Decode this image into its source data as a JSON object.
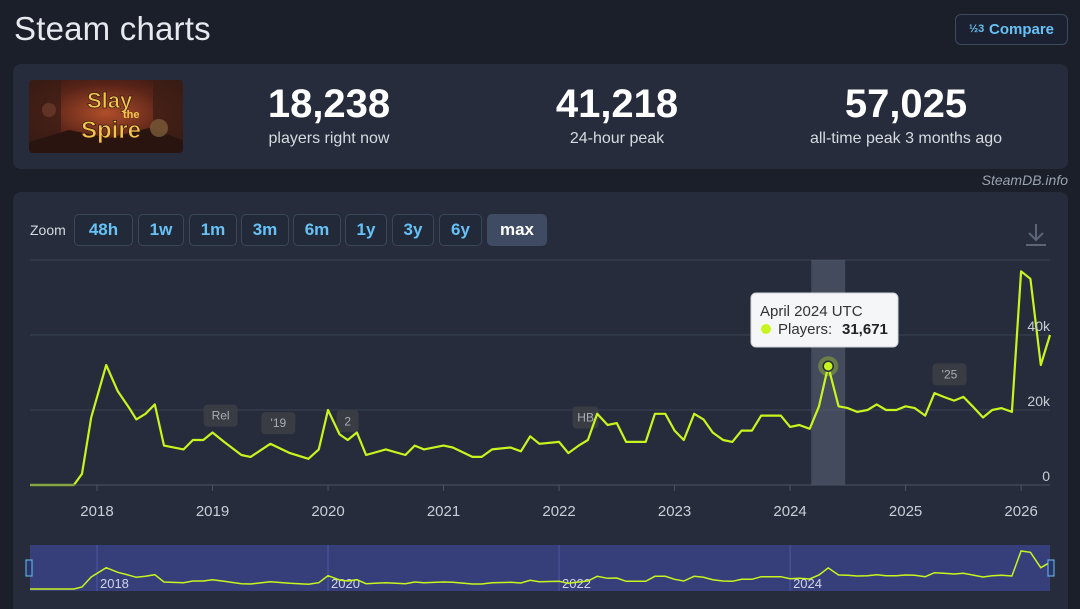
{
  "header": {
    "title": "Steam charts",
    "compare_label": "Compare",
    "compare_icon_text": "½3"
  },
  "game": {
    "logo_text_1": "Slay",
    "logo_text_2": "the",
    "logo_text_3": "Spire"
  },
  "stats": [
    {
      "value": "18,238",
      "label": "players right now"
    },
    {
      "value": "41,218",
      "label": "24-hour peak"
    },
    {
      "value": "57,025",
      "label": "all-time peak 3 months ago"
    }
  ],
  "watermark": "SteamDB.info",
  "zoom": {
    "label": "Zoom",
    "options": [
      "48h",
      "1w",
      "1m",
      "3m",
      "6m",
      "1y",
      "3y",
      "6y",
      "max"
    ],
    "active": "max"
  },
  "tooltip": {
    "title": "April 2024 UTC",
    "series_label": "Players:",
    "value": "31,671"
  },
  "colors": {
    "line": "#c8f51e",
    "background": "#1b1f2a",
    "panel": "#262c3b",
    "accent": "#67c1f5"
  },
  "chart_data": {
    "type": "line",
    "series": [
      {
        "values": [
          [
            2017.42,
            0
          ],
          [
            2017.8,
            0
          ],
          [
            2017.87,
            3000
          ],
          [
            2017.95,
            18000
          ],
          [
            2018.08,
            32000
          ],
          [
            2018.18,
            25000
          ],
          [
            2018.28,
            20500
          ],
          [
            2018.34,
            17500
          ],
          [
            2018.42,
            19000
          ],
          [
            2018.5,
            21500
          ],
          [
            2018.58,
            10500
          ],
          [
            2018.75,
            9500
          ],
          [
            2018.83,
            12000
          ],
          [
            2018.92,
            12000
          ],
          [
            2019.0,
            14000
          ],
          [
            2019.1,
            11500
          ],
          [
            2019.25,
            8000
          ],
          [
            2019.33,
            7500
          ],
          [
            2019.5,
            11000
          ],
          [
            2019.67,
            8500
          ],
          [
            2019.83,
            7000
          ],
          [
            2019.92,
            9500
          ],
          [
            2020.0,
            20000
          ],
          [
            2020.1,
            13500
          ],
          [
            2020.17,
            12000
          ],
          [
            2020.25,
            14000
          ],
          [
            2020.33,
            8000
          ],
          [
            2020.5,
            9500
          ],
          [
            2020.67,
            8000
          ],
          [
            2020.75,
            10500
          ],
          [
            2020.83,
            9500
          ],
          [
            2021.0,
            10500
          ],
          [
            2021.08,
            10000
          ],
          [
            2021.25,
            7500
          ],
          [
            2021.33,
            7500
          ],
          [
            2021.42,
            9500
          ],
          [
            2021.58,
            10000
          ],
          [
            2021.67,
            9000
          ],
          [
            2021.75,
            13000
          ],
          [
            2021.83,
            11000
          ],
          [
            2022.0,
            11500
          ],
          [
            2022.08,
            8500
          ],
          [
            2022.17,
            10500
          ],
          [
            2022.25,
            12000
          ],
          [
            2022.33,
            19000
          ],
          [
            2022.42,
            16000
          ],
          [
            2022.5,
            16500
          ],
          [
            2022.58,
            11500
          ],
          [
            2022.75,
            11500
          ],
          [
            2022.83,
            19000
          ],
          [
            2022.92,
            19000
          ],
          [
            2023.0,
            14500
          ],
          [
            2023.08,
            12000
          ],
          [
            2023.17,
            19000
          ],
          [
            2023.25,
            17500
          ],
          [
            2023.33,
            14000
          ],
          [
            2023.42,
            12000
          ],
          [
            2023.5,
            11500
          ],
          [
            2023.58,
            14500
          ],
          [
            2023.67,
            14500
          ],
          [
            2023.75,
            18500
          ],
          [
            2023.83,
            18500
          ],
          [
            2023.92,
            18500
          ],
          [
            2024.0,
            15500
          ],
          [
            2024.08,
            16000
          ],
          [
            2024.17,
            15000
          ],
          [
            2024.25,
            21000
          ],
          [
            2024.33,
            31671
          ],
          [
            2024.42,
            21000
          ],
          [
            2024.5,
            20500
          ],
          [
            2024.58,
            19500
          ],
          [
            2024.67,
            20000
          ],
          [
            2024.75,
            21500
          ],
          [
            2024.83,
            20000
          ],
          [
            2024.92,
            20000
          ],
          [
            2025.0,
            21000
          ],
          [
            2025.08,
            20500
          ],
          [
            2025.17,
            18500
          ],
          [
            2025.25,
            24500
          ],
          [
            2025.33,
            23500
          ],
          [
            2025.42,
            22500
          ],
          [
            2025.5,
            23500
          ],
          [
            2025.58,
            21000
          ],
          [
            2025.67,
            18000
          ],
          [
            2025.75,
            20000
          ],
          [
            2025.83,
            20500
          ],
          [
            2025.92,
            19500
          ],
          [
            2026.0,
            57000
          ],
          [
            2026.08,
            55000
          ],
          [
            2026.17,
            32000
          ],
          [
            2026.25,
            40000
          ]
        ]
      }
    ],
    "x_ticks": [
      "2018",
      "2019",
      "2020",
      "2021",
      "2022",
      "2023",
      "2024",
      "2025",
      "2026"
    ],
    "y_ticks": [
      "0",
      "20k",
      "40k"
    ],
    "ylim": [
      0,
      60000
    ],
    "xlim": [
      2017.42,
      2026.25
    ],
    "grid": true,
    "annotations": [
      {
        "label": "Rel",
        "x": 2019.07,
        "y": 18500
      },
      {
        "label": "'19",
        "x": 2019.57,
        "y": 16500
      },
      {
        "label": "2",
        "x": 2020.17,
        "y": 17000
      },
      {
        "label": "HB",
        "x": 2022.23,
        "y": 18000
      },
      {
        "label": "'25",
        "x": 2025.38,
        "y": 29500
      }
    ],
    "highlight": {
      "x": 2024.33,
      "y": 31671
    },
    "navigator_ticks": [
      "2018",
      "2020",
      "2022",
      "2024"
    ]
  }
}
